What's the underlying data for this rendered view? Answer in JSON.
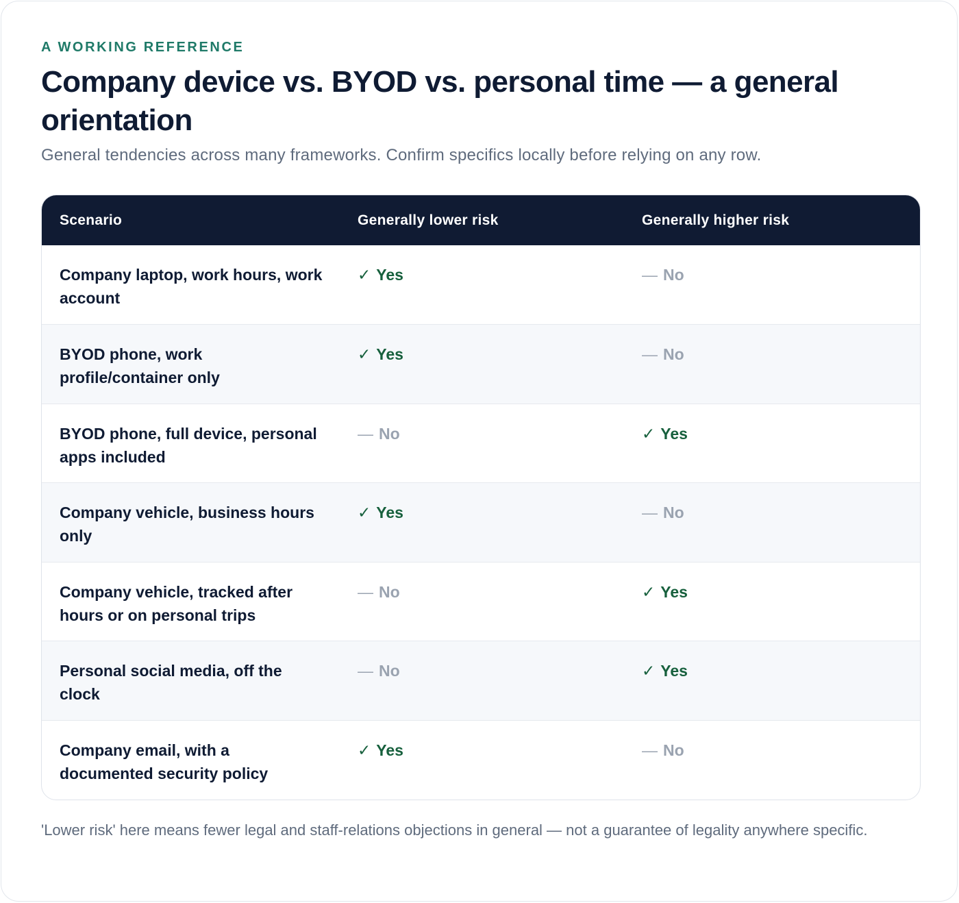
{
  "header": {
    "eyebrow": "A WORKING REFERENCE",
    "title": "Company device vs. BYOD vs. personal time — a general orientation",
    "subtitle": "General tendencies across many frameworks. Confirm specifics locally before relying on any row."
  },
  "table": {
    "columns": [
      "Scenario",
      "Generally lower risk",
      "Generally higher risk"
    ],
    "rows": [
      {
        "scenario": "Company laptop, work hours, work account",
        "lower": "Yes",
        "higher": "No"
      },
      {
        "scenario": "BYOD phone, work profile/container only",
        "lower": "Yes",
        "higher": "No"
      },
      {
        "scenario": "BYOD phone, full device, personal apps included",
        "lower": "No",
        "higher": "Yes"
      },
      {
        "scenario": "Company vehicle, business hours only",
        "lower": "Yes",
        "higher": "No"
      },
      {
        "scenario": "Company vehicle, tracked after hours or on personal trips",
        "lower": "No",
        "higher": "Yes"
      },
      {
        "scenario": "Personal social media, off the clock",
        "lower": "No",
        "higher": "Yes"
      },
      {
        "scenario": "Company email, with a documented security policy",
        "lower": "Yes",
        "higher": "No"
      }
    ],
    "marks": {
      "yes": "✓",
      "no": "—"
    }
  },
  "footnote": "'Lower risk' here means fewer legal and staff-relations objections in general — not a guarantee of legality anywhere specific.",
  "colors": {
    "header_bg": "#101b33",
    "accent": "#1f7a68",
    "yes": "#17603d",
    "no": "#9aa3b0"
  }
}
